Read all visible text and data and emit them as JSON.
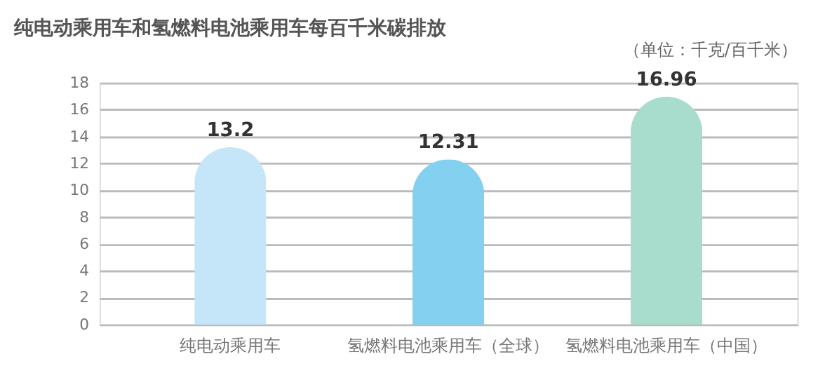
{
  "chart_data": {
    "type": "bar",
    "title": "纯电动乘用车和氢燃料电池乘用车每百千米碳排放",
    "subtitle": "（单位：千克/百千米）",
    "categories": [
      "纯电动乘用车",
      "氢燃料电池乘用车（全球）",
      "氢燃料电池乘用车（中国）"
    ],
    "values": [
      13.2,
      12.31,
      16.96
    ],
    "colors": [
      "#c4e6f8",
      "#84d0f0",
      "#a8dccd"
    ],
    "ylim": [
      0,
      18
    ],
    "yticks": [
      0,
      2,
      4,
      6,
      8,
      10,
      12,
      14,
      16,
      18
    ],
    "grid": "y",
    "data_labels": true
  }
}
